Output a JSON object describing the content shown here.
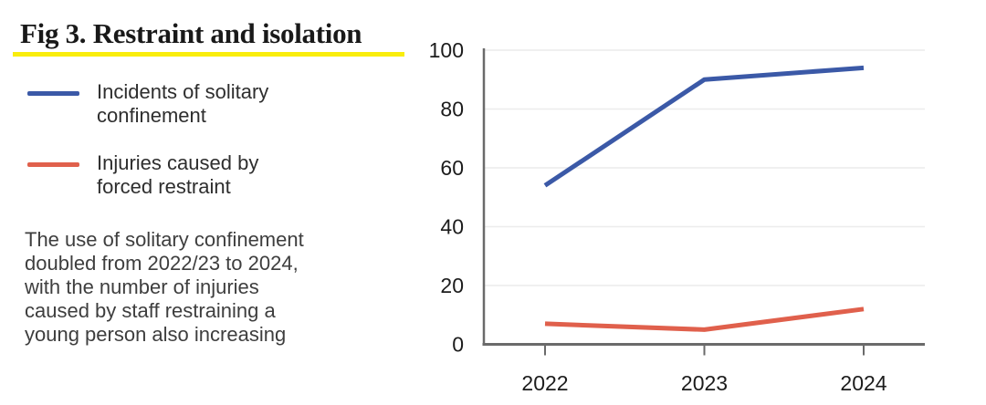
{
  "figure": {
    "title": "Fig 3. Restraint and isolation",
    "note_lines": [
      "The use of solitary confinement",
      "doubled from 2022/23 to 2024,",
      "with the number of injuries",
      "caused by staff restraining a",
      "young person also increasing"
    ]
  },
  "legend": [
    {
      "label_lines": [
        "Incidents of solitary",
        "confinement"
      ],
      "color": "#3B59A7"
    },
    {
      "label_lines": [
        "Injuries caused by",
        "forced restraint"
      ],
      "color": "#E0604C"
    }
  ],
  "chart_data": {
    "type": "line",
    "x": [
      "2022",
      "2023",
      "2024"
    ],
    "series": [
      {
        "name": "Incidents of solitary confinement",
        "color": "#3B59A7",
        "values": [
          54,
          90,
          94
        ]
      },
      {
        "name": "Injuries caused by forced restraint",
        "color": "#E0604C",
        "values": [
          7,
          5,
          12
        ]
      }
    ],
    "title": "Fig 3. Restraint and isolation",
    "xlabel": "",
    "ylabel": "",
    "ylim": [
      0,
      100
    ],
    "yticks": [
      0,
      20,
      40,
      60,
      80,
      100
    ],
    "grid": true,
    "legend_position": "left"
  },
  "colors": {
    "accent_underline": "#F9ED0C",
    "grid": "#ECECEC",
    "axis": "#6A6A6A",
    "tick_label": "#1C1C1C"
  }
}
